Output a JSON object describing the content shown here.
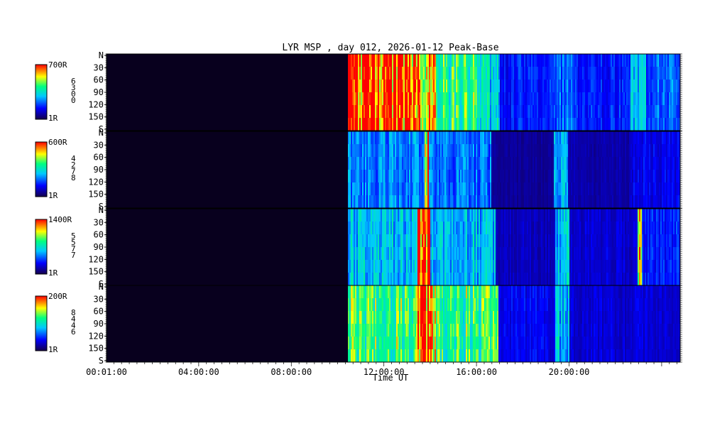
{
  "chart_data": {
    "type": "heatmap",
    "title": "LYR MSP , day 012, 2026-01-12 Peak-Base",
    "xlabel": "Time UT",
    "x_ticks": [
      "00:01:00",
      "04:00:00",
      "08:00:00",
      "12:00:00",
      "16:00:00",
      "20:00:00"
    ],
    "x_range_hours": [
      0.0167,
      24.8
    ],
    "y_axis": {
      "range_deg": [
        0,
        180
      ],
      "tick_labels": [
        "N",
        "30",
        "60",
        "90",
        "120",
        "150",
        "S"
      ]
    },
    "colormap": [
      "#14004b",
      "#0000ff",
      "#00c8ff",
      "#00ff80",
      "#ffff00",
      "#ff0000"
    ],
    "background_color": "#08001e",
    "panels": [
      {
        "colorbar_max": "700R",
        "colorbar_min": "1R",
        "channel_digits": [
          "6",
          "3",
          "0",
          "0"
        ],
        "activity": [
          [
            10.4,
            13.5,
            1.0
          ],
          [
            13.5,
            14.2,
            0.85
          ],
          [
            14.2,
            16.0,
            0.6
          ],
          [
            16.0,
            17.0,
            0.45
          ],
          [
            17.0,
            19.3,
            0.22
          ],
          [
            19.3,
            20.1,
            0.3
          ],
          [
            20.1,
            22.6,
            0.22
          ],
          [
            22.6,
            23.3,
            0.4
          ],
          [
            23.3,
            24.8,
            0.3
          ]
        ]
      },
      {
        "colorbar_max": "600R",
        "colorbar_min": "1R",
        "channel_digits": [
          "4",
          "2",
          "7",
          "8"
        ],
        "activity": [
          [
            10.4,
            13.7,
            0.33
          ],
          [
            13.7,
            13.9,
            0.9
          ],
          [
            13.9,
            16.6,
            0.3
          ],
          [
            16.6,
            19.3,
            0.08
          ],
          [
            19.3,
            19.9,
            0.35
          ],
          [
            19.9,
            22.6,
            0.1
          ],
          [
            22.6,
            24.8,
            0.18
          ]
        ]
      },
      {
        "colorbar_max": "1400R",
        "colorbar_min": "1R",
        "channel_digits": [
          "5",
          "5",
          "7",
          "7"
        ],
        "activity": [
          [
            10.4,
            13.4,
            0.4
          ],
          [
            13.4,
            14.0,
            0.95
          ],
          [
            14.0,
            16.8,
            0.4
          ],
          [
            16.8,
            19.4,
            0.12
          ],
          [
            19.4,
            20.0,
            0.42
          ],
          [
            20.0,
            22.9,
            0.15
          ],
          [
            22.9,
            23.1,
            0.85
          ],
          [
            23.1,
            24.8,
            0.22
          ]
        ]
      },
      {
        "colorbar_max": "200R",
        "colorbar_min": "1R",
        "channel_digits": [
          "8",
          "4",
          "4",
          "6"
        ],
        "activity": [
          [
            10.4,
            13.4,
            0.62
          ],
          [
            13.4,
            14.2,
            0.95
          ],
          [
            14.2,
            16.9,
            0.6
          ],
          [
            16.9,
            19.4,
            0.18
          ],
          [
            19.4,
            20.0,
            0.4
          ],
          [
            20.0,
            24.8,
            0.15
          ]
        ]
      }
    ],
    "grid": false,
    "legend": "left-colorbars"
  }
}
